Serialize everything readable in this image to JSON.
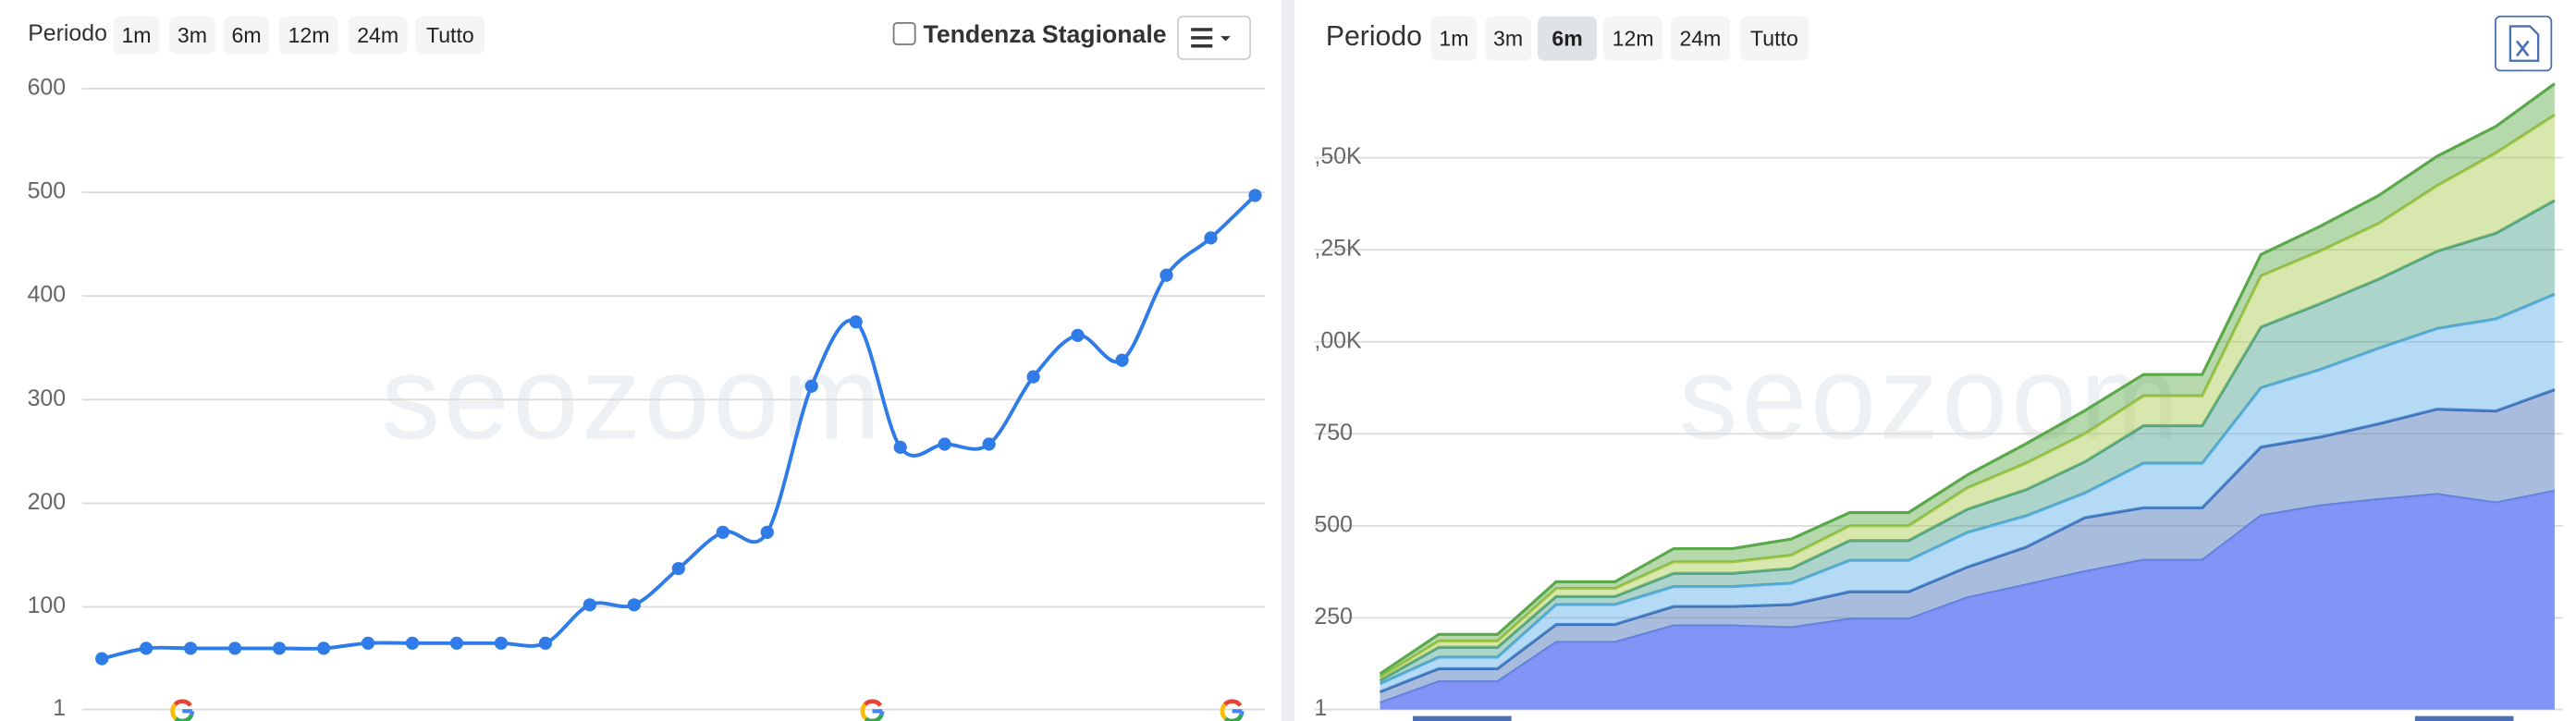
{
  "toolbars": [
    {
      "label": "Periodo",
      "buttons": [
        "1m",
        "3m",
        "6m",
        "12m",
        "24m",
        "Tutto"
      ]
    },
    {
      "label": "Periodo",
      "buttons": [
        "1m",
        "3m",
        "6m",
        "12m",
        "24m",
        "Tutto"
      ],
      "selected": 2
    }
  ],
  "seasonal_toggle": "Tendenza Stagionale",
  "watermark": "seozoom",
  "chart_data": [
    {
      "type": "line",
      "color": "#2f7be8",
      "markers": true,
      "grid": true,
      "values": [
        50,
        60,
        60,
        60,
        60,
        60,
        65,
        65,
        65,
        65,
        65,
        102,
        102,
        137,
        172,
        172,
        313,
        375,
        254,
        257,
        257,
        322,
        362,
        338,
        420,
        456,
        497
      ],
      "ylim": [
        1,
        600
      ],
      "yticks": [
        1,
        100,
        200,
        300,
        400,
        500,
        600
      ]
    },
    {
      "type": "stacked_area",
      "grid": true,
      "series": [
        {
          "color": "#7b8ff5",
          "values": [
            18,
            76,
            76,
            183,
            183,
            228,
            228,
            223,
            246,
            246,
            304,
            339,
            375,
            406,
            406,
            527,
            554,
            571,
            585,
            562,
            594
          ]
        },
        {
          "color": "#3f6db5",
          "values": [
            31,
            36,
            36,
            49,
            49,
            53,
            53,
            63,
            75,
            75,
            84,
            103,
            147,
            143,
            143,
            187,
            187,
            206,
            232,
            250,
            276
          ]
        },
        {
          "color": "#5aaee8",
          "values": [
            22,
            31,
            31,
            54,
            54,
            54,
            54,
            58,
            85,
            85,
            94,
            85,
            67,
            121,
            121,
            161,
            183,
            205,
            219,
            250,
            259
          ]
        },
        {
          "color": "#4aa08a",
          "values": [
            9,
            27,
            27,
            22,
            22,
            36,
            36,
            40,
            54,
            54,
            63,
            71,
            85,
            102,
            102,
            165,
            179,
            188,
            210,
            233,
            255
          ]
        },
        {
          "color": "#a8c94a",
          "values": [
            9,
            17,
            17,
            22,
            22,
            31,
            31,
            36,
            40,
            40,
            58,
            72,
            76,
            81,
            81,
            139,
            143,
            151,
            178,
            218,
            232
          ]
        },
        {
          "color": "#5aa84a",
          "values": [
            9,
            18,
            18,
            18,
            18,
            36,
            36,
            44,
            36,
            36,
            35,
            53,
            63,
            58,
            58,
            58,
            67,
            76,
            80,
            72,
            85
          ]
        }
      ],
      "ylim": [
        1,
        1750
      ],
      "yticks": [
        1,
        250,
        500,
        750,
        {
          "value": 1000,
          "label": ",00K"
        },
        {
          "value": 1250,
          "label": ",25K"
        },
        {
          "value": 1500,
          "label": ",50K"
        }
      ]
    }
  ]
}
